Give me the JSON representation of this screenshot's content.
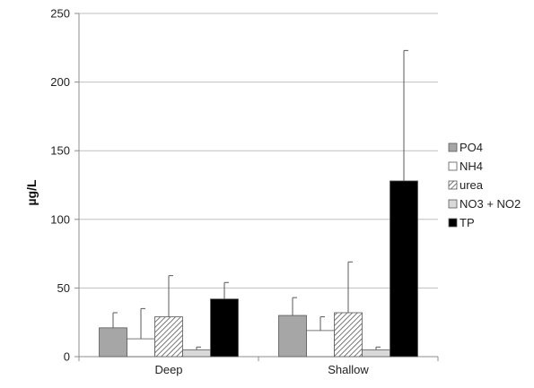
{
  "chart_data": {
    "type": "bar",
    "ylabel": "µg/L",
    "ylim": [
      0,
      250
    ],
    "yticks": [
      "0",
      "50",
      "100",
      "150",
      "200",
      "250"
    ],
    "categories": [
      "Deep",
      "Shallow"
    ],
    "grid": true,
    "legend_position": "right",
    "series": [
      {
        "name": "PO4",
        "values": [
          21,
          30
        ],
        "errors": [
          11,
          13
        ],
        "color": "#a6a6a6",
        "pattern": "solid"
      },
      {
        "name": "NH4",
        "values": [
          13,
          19
        ],
        "errors": [
          22,
          10
        ],
        "color": "#ffffff",
        "pattern": "solid"
      },
      {
        "name": "urea",
        "values": [
          29,
          32
        ],
        "errors": [
          30,
          37
        ],
        "color": "#bfbfbf",
        "pattern": "hatch"
      },
      {
        "name": "NO3 + NO2",
        "values": [
          5,
          5
        ],
        "errors": [
          2,
          2
        ],
        "color": "#d9d9d9",
        "pattern": "solid"
      },
      {
        "name": "TP",
        "values": [
          42,
          128
        ],
        "errors": [
          12,
          95
        ],
        "color": "#000000",
        "pattern": "solid"
      }
    ]
  }
}
